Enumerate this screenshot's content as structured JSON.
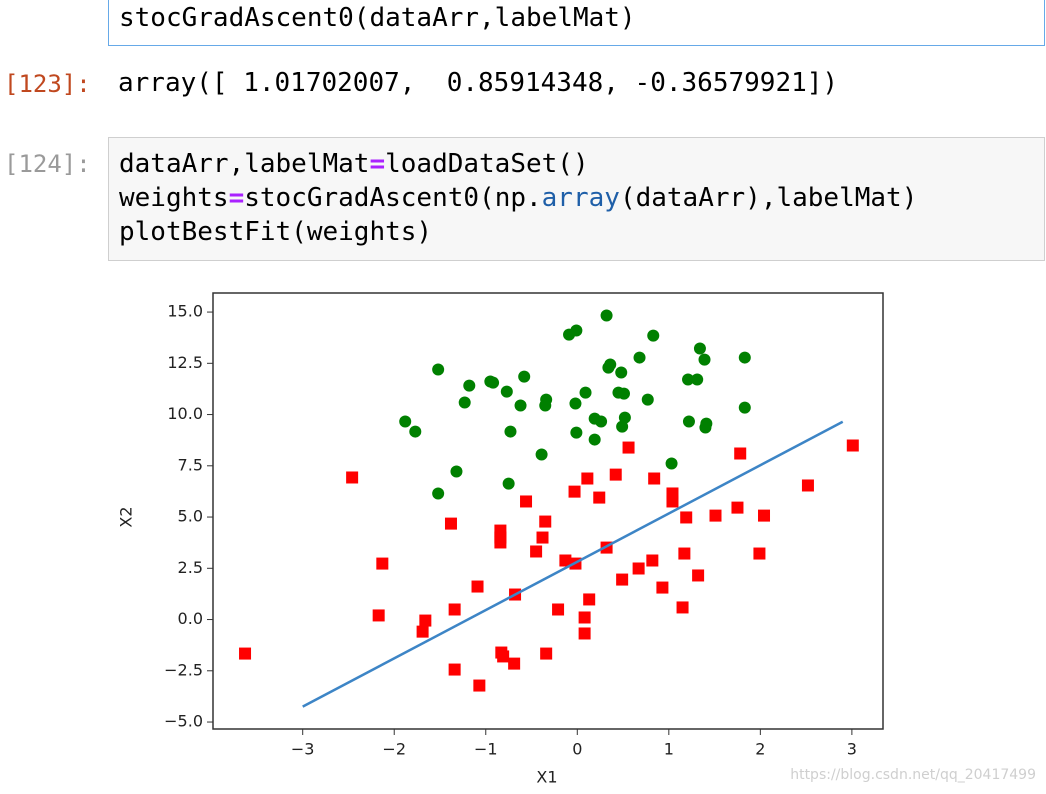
{
  "cell_top": {
    "code": "stocGradAscent0(dataArr,labelMat)"
  },
  "output_123": {
    "prompt": "[123]:",
    "text": "array([ 1.01702007,  0.85914348, -0.36579921])"
  },
  "cell_124": {
    "prompt": "[124]:",
    "lines": [
      [
        "dataArr,labelMat",
        "=",
        "loadDataSet()"
      ],
      [
        "weights",
        "=",
        "stocGradAscent0(np.",
        "array",
        "(dataArr),labelMat)"
      ],
      [
        "plotBestFit(weights)"
      ]
    ]
  },
  "watermark": "https://blog.csdn.net/qq_20417499",
  "chart_data": {
    "type": "scatter",
    "xlabel": "X1",
    "ylabel": "X2",
    "xlim": [
      -3.98,
      3.34
    ],
    "ylim": [
      -5.34,
      15.93
    ],
    "xticks": [
      {
        "value": -3,
        "label": "−3"
      },
      {
        "value": -2,
        "label": "−2"
      },
      {
        "value": -1,
        "label": "−1"
      },
      0,
      1,
      2,
      3
    ],
    "yticks": [
      {
        "value": 15,
        "label": "15.0"
      },
      {
        "value": 12.5,
        "label": "12.5"
      },
      {
        "value": 10,
        "label": "10.0"
      },
      {
        "value": 7.5,
        "label": "7.5"
      },
      {
        "value": 5,
        "label": "5.0"
      },
      {
        "value": 2.5,
        "label": "2.5"
      },
      {
        "value": 0,
        "label": "0.0"
      },
      {
        "value": -2.5,
        "label": "−2.5"
      },
      {
        "value": -5,
        "label": "−5.0"
      }
    ],
    "series": [
      {
        "type": "scatter",
        "marker": "circle",
        "color": "#008000",
        "x": [
          -1.52,
          -1.18,
          -1.23,
          -1.88,
          -1.77,
          -0.95,
          -0.92,
          -0.77,
          -0.58,
          -0.62,
          -0.73,
          -0.34,
          -0.35,
          -0.39,
          -1.32,
          -1.52,
          -0.75,
          -0.09,
          -0.01,
          0.32,
          0.36,
          0.34,
          0.48,
          0.09,
          -0.02,
          0.45,
          0.51,
          0.19,
          0.26,
          0.52,
          0.49,
          -0.01,
          0.19,
          0.83,
          0.68,
          0.77,
          1.03,
          1.34,
          1.39,
          1.21,
          1.31,
          1.22,
          1.41,
          1.4,
          1.83,
          1.83
        ],
        "values": [
          12.2,
          11.41,
          10.59,
          9.66,
          9.17,
          11.61,
          11.56,
          11.12,
          11.85,
          10.44,
          9.17,
          10.73,
          10.44,
          8.05,
          7.22,
          6.15,
          6.63,
          13.9,
          14.1,
          14.83,
          12.44,
          12.29,
          12.05,
          11.07,
          10.54,
          11.07,
          11.02,
          9.8,
          9.66,
          9.85,
          9.41,
          9.12,
          8.78,
          13.85,
          12.78,
          10.73,
          7.61,
          13.22,
          12.68,
          11.71,
          11.71,
          9.66,
          9.56,
          9.37,
          12.78,
          10.34
        ]
      },
      {
        "type": "scatter",
        "marker": "square",
        "color": "#ff0000",
        "x": [
          -3.63,
          -2.46,
          -2.13,
          -2.17,
          -1.66,
          -1.69,
          -1.38,
          -1.34,
          -1.34,
          -1.09,
          -1.07,
          -0.84,
          -0.84,
          -0.84,
          -0.83,
          -0.81,
          -0.69,
          -0.68,
          -0.56,
          -0.45,
          -0.35,
          -0.38,
          -0.34,
          -0.21,
          -0.13,
          -0.03,
          -0.02,
          0.11,
          0.24,
          0.13,
          0.08,
          0.08,
          0.32,
          0.42,
          0.49,
          0.56,
          0.67,
          0.82,
          0.84,
          0.93,
          1.04,
          1.04,
          1.19,
          1.17,
          1.15,
          1.32,
          1.51,
          1.78,
          1.75,
          2.04,
          1.99,
          2.52,
          3.01
        ],
        "values": [
          -1.66,
          6.93,
          2.73,
          0.2,
          -0.05,
          -0.59,
          4.68,
          0.49,
          -2.44,
          1.61,
          -3.22,
          4.34,
          4.0,
          3.76,
          -1.61,
          -1.8,
          -2.15,
          1.22,
          5.76,
          3.32,
          4.78,
          4.0,
          -1.66,
          0.49,
          2.88,
          6.24,
          2.73,
          6.88,
          5.95,
          0.98,
          0.1,
          -0.68,
          3.51,
          7.07,
          1.95,
          8.39,
          2.49,
          2.88,
          6.88,
          1.56,
          6.15,
          5.76,
          4.98,
          3.22,
          0.59,
          2.15,
          5.07,
          8.1,
          5.46,
          5.07,
          3.22,
          6.54,
          8.49
        ]
      },
      {
        "type": "line",
        "color": "#3d85c6",
        "x": [
          -3,
          2.9
        ],
        "values": [
          -4.25,
          9.65
        ]
      }
    ]
  }
}
